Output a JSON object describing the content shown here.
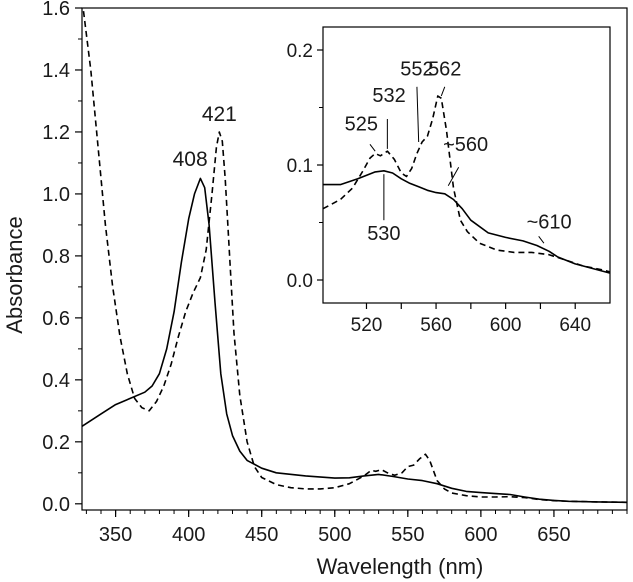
{
  "chart_data": [
    {
      "type": "line",
      "title": "",
      "xlabel": "Wavelength (nm)",
      "ylabel": "Absorbance",
      "xlim": [
        327,
        700
      ],
      "ylim": [
        -0.02,
        1.6
      ],
      "xticks": [
        350,
        400,
        450,
        500,
        550,
        600,
        650
      ],
      "yticks": [
        0.0,
        0.2,
        0.4,
        0.6,
        0.8,
        1.0,
        1.2,
        1.4,
        1.6
      ],
      "ytick_labels": [
        "0.0",
        "0.2",
        "0.4",
        "0.6",
        "0.8",
        "1.0",
        "1.2",
        "1.4",
        "1.6"
      ],
      "grid": false,
      "series": [
        {
          "style": "solid",
          "color": "#000000",
          "points": [
            [
              327,
              0.25
            ],
            [
              340,
              0.29
            ],
            [
              350,
              0.32
            ],
            [
              360,
              0.34
            ],
            [
              370,
              0.36
            ],
            [
              375,
              0.38
            ],
            [
              380,
              0.42
            ],
            [
              385,
              0.5
            ],
            [
              390,
              0.62
            ],
            [
              395,
              0.78
            ],
            [
              400,
              0.92
            ],
            [
              404,
              1.0
            ],
            [
              408,
              1.05
            ],
            [
              411,
              1.02
            ],
            [
              414,
              0.9
            ],
            [
              418,
              0.65
            ],
            [
              422,
              0.42
            ],
            [
              426,
              0.29
            ],
            [
              430,
              0.22
            ],
            [
              435,
              0.17
            ],
            [
              440,
              0.14
            ],
            [
              450,
              0.115
            ],
            [
              460,
              0.1
            ],
            [
              480,
              0.09
            ],
            [
              500,
              0.083
            ],
            [
              510,
              0.084
            ],
            [
              520,
              0.09
            ],
            [
              530,
              0.095
            ],
            [
              540,
              0.088
            ],
            [
              550,
              0.08
            ],
            [
              560,
              0.075
            ],
            [
              570,
              0.065
            ],
            [
              580,
              0.05
            ],
            [
              590,
              0.04
            ],
            [
              600,
              0.036
            ],
            [
              610,
              0.033
            ],
            [
              620,
              0.03
            ],
            [
              630,
              0.022
            ],
            [
              640,
              0.015
            ],
            [
              650,
              0.011
            ],
            [
              660,
              0.008
            ],
            [
              680,
              0.006
            ],
            [
              700,
              0.005
            ]
          ]
        },
        {
          "style": "dashed",
          "color": "#000000",
          "points": [
            [
              328,
              1.59
            ],
            [
              333,
              1.4
            ],
            [
              338,
              1.15
            ],
            [
              343,
              0.9
            ],
            [
              348,
              0.7
            ],
            [
              353,
              0.54
            ],
            [
              358,
              0.42
            ],
            [
              363,
              0.34
            ],
            [
              368,
              0.31
            ],
            [
              373,
              0.3
            ],
            [
              378,
              0.33
            ],
            [
              383,
              0.38
            ],
            [
              388,
              0.45
            ],
            [
              393,
              0.54
            ],
            [
              398,
              0.62
            ],
            [
              403,
              0.68
            ],
            [
              408,
              0.73
            ],
            [
              412,
              0.82
            ],
            [
              416,
              1.0
            ],
            [
              419,
              1.15
            ],
            [
              421,
              1.2
            ],
            [
              423,
              1.17
            ],
            [
              425,
              1.05
            ],
            [
              428,
              0.8
            ],
            [
              431,
              0.55
            ],
            [
              435,
              0.35
            ],
            [
              440,
              0.2
            ],
            [
              445,
              0.12
            ],
            [
              450,
              0.085
            ],
            [
              460,
              0.062
            ],
            [
              470,
              0.052
            ],
            [
              480,
              0.048
            ],
            [
              490,
              0.048
            ],
            [
              500,
              0.052
            ],
            [
              510,
              0.065
            ],
            [
              520,
              0.09
            ],
            [
              525,
              0.108
            ],
            [
              528,
              0.105
            ],
            [
              532,
              0.11
            ],
            [
              536,
              0.1
            ],
            [
              541,
              0.092
            ],
            [
              546,
              0.1
            ],
            [
              550,
              0.12
            ],
            [
              554,
              0.125
            ],
            [
              558,
              0.145
            ],
            [
              562,
              0.16
            ],
            [
              565,
              0.14
            ],
            [
              570,
              0.075
            ],
            [
              575,
              0.048
            ],
            [
              580,
              0.035
            ],
            [
              590,
              0.026
            ],
            [
              600,
              0.022
            ],
            [
              610,
              0.022
            ],
            [
              620,
              0.023
            ],
            [
              630,
              0.02
            ],
            [
              640,
              0.014
            ],
            [
              650,
              0.01
            ],
            [
              660,
              0.008
            ],
            [
              680,
              0.006
            ],
            [
              700,
              0.005
            ]
          ]
        }
      ],
      "annotations": [
        {
          "text": "408",
          "x": 401,
          "y": 1.09
        },
        {
          "text": "421",
          "x": 421,
          "y": 1.235
        }
      ]
    },
    {
      "type": "line",
      "title": "",
      "xlabel": "",
      "ylabel": "",
      "xlim": [
        495,
        660
      ],
      "ylim": [
        -0.02,
        0.22
      ],
      "xticks": [
        520,
        540,
        560,
        580,
        600,
        620,
        640
      ],
      "xtick_labels": [
        520,
        560,
        600,
        640
      ],
      "yticks": [
        0.0,
        0.1,
        0.2
      ],
      "ytick_labels": [
        "0.0",
        "0.1",
        "0.2"
      ],
      "grid": false,
      "series": [
        {
          "style": "solid",
          "color": "#000000",
          "points": [
            [
              495,
              0.083
            ],
            [
              505,
              0.083
            ],
            [
              515,
              0.088
            ],
            [
              525,
              0.094
            ],
            [
              530,
              0.095
            ],
            [
              535,
              0.093
            ],
            [
              540,
              0.088
            ],
            [
              545,
              0.084
            ],
            [
              550,
              0.081
            ],
            [
              555,
              0.078
            ],
            [
              560,
              0.076
            ],
            [
              565,
              0.075
            ],
            [
              570,
              0.07
            ],
            [
              575,
              0.062
            ],
            [
              580,
              0.052
            ],
            [
              590,
              0.041
            ],
            [
              600,
              0.037
            ],
            [
              610,
              0.034
            ],
            [
              618,
              0.03
            ],
            [
              625,
              0.025
            ],
            [
              630,
              0.02
            ],
            [
              640,
              0.014
            ],
            [
              650,
              0.01
            ],
            [
              660,
              0.006
            ]
          ]
        },
        {
          "style": "dashed",
          "color": "#000000",
          "points": [
            [
              495,
              0.062
            ],
            [
              505,
              0.07
            ],
            [
              512,
              0.08
            ],
            [
              518,
              0.095
            ],
            [
              522,
              0.106
            ],
            [
              525,
              0.11
            ],
            [
              528,
              0.108
            ],
            [
              532,
              0.112
            ],
            [
              536,
              0.105
            ],
            [
              540,
              0.093
            ],
            [
              543,
              0.09
            ],
            [
              546,
              0.097
            ],
            [
              549,
              0.11
            ],
            [
              552,
              0.12
            ],
            [
              555,
              0.125
            ],
            [
              558,
              0.14
            ],
            [
              561,
              0.16
            ],
            [
              563,
              0.158
            ],
            [
              566,
              0.13
            ],
            [
              570,
              0.08
            ],
            [
              574,
              0.052
            ],
            [
              578,
              0.042
            ],
            [
              585,
              0.032
            ],
            [
              595,
              0.026
            ],
            [
              605,
              0.024
            ],
            [
              615,
              0.024
            ],
            [
              625,
              0.022
            ],
            [
              635,
              0.017
            ],
            [
              645,
              0.012
            ],
            [
              655,
              0.009
            ],
            [
              660,
              0.007
            ]
          ]
        }
      ],
      "annotations": [
        {
          "text": "525",
          "x": 517,
          "y": 0.13
        },
        {
          "text": "532",
          "x": 533,
          "y": 0.155
        },
        {
          "text": "552",
          "x": 549,
          "y": 0.178
        },
        {
          "text": "562",
          "x": 565,
          "y": 0.178
        },
        {
          "text": "~560",
          "x": 577,
          "y": 0.112
        },
        {
          "text": "530",
          "x": 530,
          "y": 0.035
        },
        {
          "text": "~610",
          "x": 625,
          "y": 0.045
        }
      ]
    }
  ]
}
